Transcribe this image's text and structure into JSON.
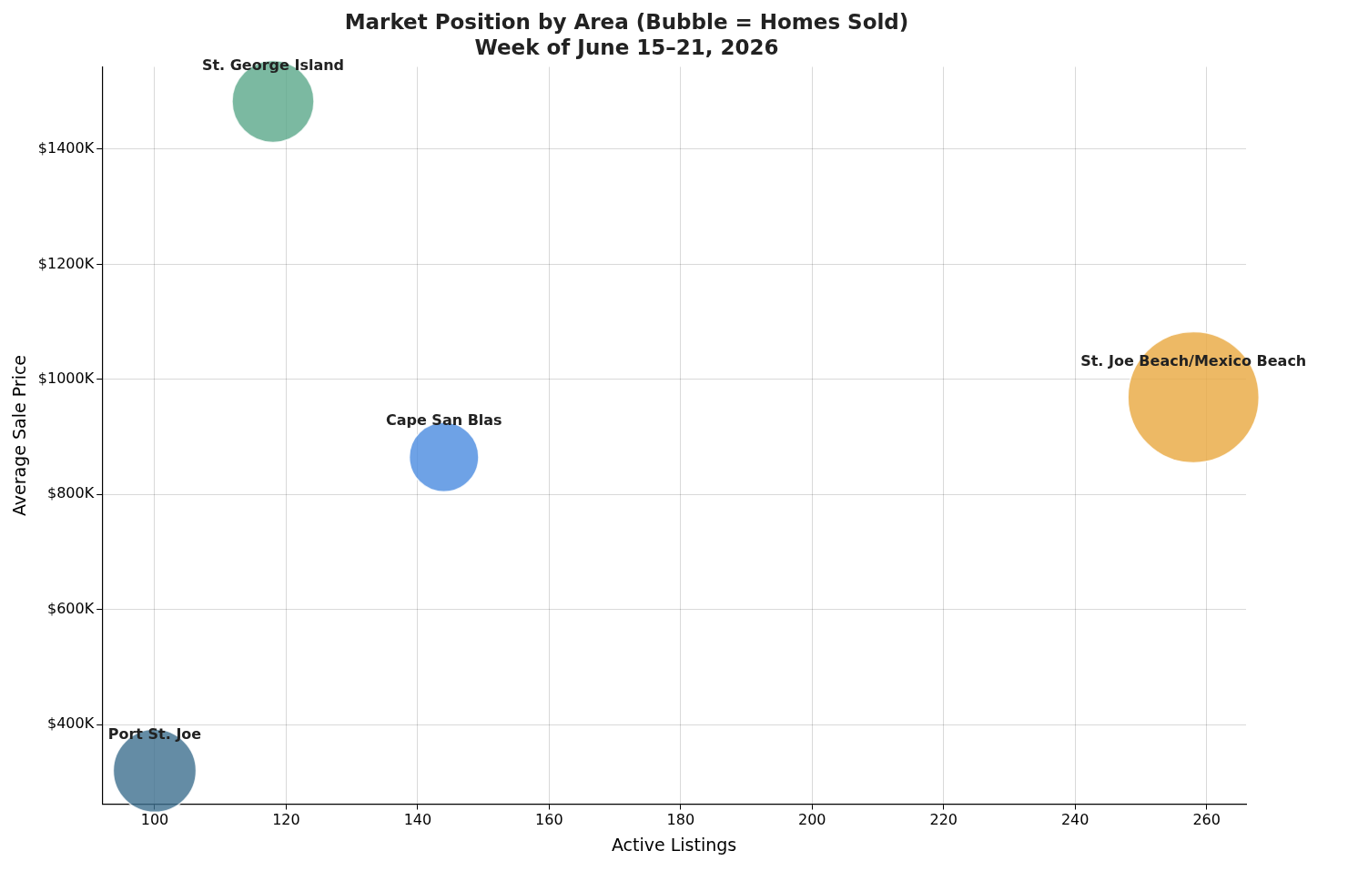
{
  "chart_data": {
    "type": "bubble",
    "title": "Market Position by Area (Bubble = Homes Sold)",
    "subtitle": "Week of June 15–21, 2026",
    "xlabel": "Active Listings",
    "ylabel": "Average Sale Price",
    "xlim": [
      92,
      266
    ],
    "xticks": [
      100,
      120,
      140,
      160,
      180,
      200,
      220,
      240,
      260
    ],
    "ylim": [
      262,
      1543
    ],
    "yticks": [
      {
        "value": 400,
        "label": "$400K"
      },
      {
        "value": 600,
        "label": "$600K"
      },
      {
        "value": 800,
        "label": "$800K"
      },
      {
        "value": 1000,
        "label": "$1000K"
      },
      {
        "value": 1200,
        "label": "$1200K"
      },
      {
        "value": 1400,
        "label": "$1400K"
      }
    ],
    "grid": true,
    "legend": false,
    "series": [
      {
        "name": "Port St. Joe",
        "color": "#3d6f8f",
        "x": [
          100
        ],
        "values": [
          320
        ],
        "sizes": [
          0.4
        ]
      },
      {
        "name": "St. George Island",
        "color": "#5aa88a",
        "x": [
          118
        ],
        "values": [
          1483
        ],
        "sizes": [
          0.39
        ]
      },
      {
        "name": "Cape San Blas",
        "color": "#4a8be0",
        "x": [
          144
        ],
        "values": [
          865
        ],
        "sizes": [
          0.28
        ]
      },
      {
        "name": "St. Joe Beach/Mexico Beach",
        "color": "#e8a83e",
        "x": [
          258
        ],
        "values": [
          969
        ],
        "sizes": [
          1
        ]
      }
    ]
  }
}
